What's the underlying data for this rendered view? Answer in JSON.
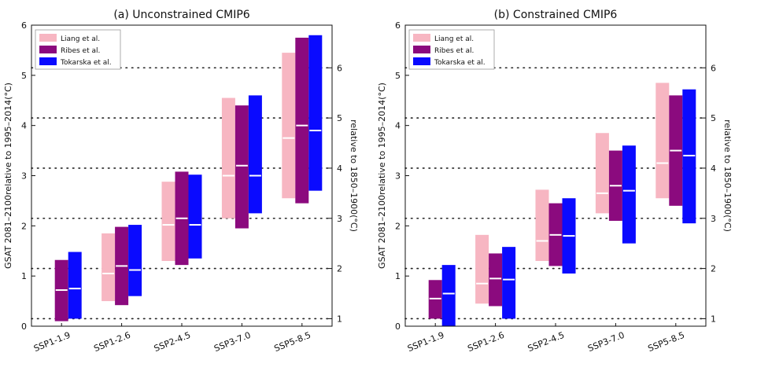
{
  "chart_data": [
    {
      "type": "bar",
      "title": "(a) Unconstrained CMIP6",
      "ylabel": "GSAT 2081–2100relative to 1995–2014(°C)",
      "ylabel2": "relative to 1850–1900(°C)",
      "ylim": [
        0,
        6
      ],
      "yticks": [
        "0",
        "1",
        "2",
        "3",
        "4",
        "5",
        "6"
      ],
      "y2ticks": [
        "1",
        "2",
        "3",
        "4",
        "5",
        "6"
      ],
      "y2_offset": 0.85,
      "grid": "dotted horizontal at right-axis ticks",
      "legend_position": "top-left",
      "categories": [
        "SSP1-1.9",
        "SSP1-2.6",
        "SSP2-4.5",
        "SSP3-7.0",
        "SSP5-8.5"
      ],
      "series": [
        {
          "name": "Liang et al.",
          "color": "#f7b6c2",
          "low": [
            null,
            0.5,
            1.3,
            2.15,
            2.55
          ],
          "high": [
            null,
            1.85,
            2.88,
            4.55,
            5.45
          ],
          "median": [
            null,
            1.05,
            2.02,
            3.0,
            3.75
          ]
        },
        {
          "name": "Ribes et al.",
          "color": "#8b0a7e",
          "low": [
            0.1,
            0.42,
            1.22,
            1.95,
            2.45
          ],
          "high": [
            1.32,
            1.98,
            3.08,
            4.4,
            5.75
          ],
          "median": [
            0.72,
            1.2,
            2.15,
            3.2,
            4.0
          ]
        },
        {
          "name": "Tokarska et al.",
          "color": "#0a0aff",
          "low": [
            0.15,
            0.6,
            1.35,
            2.25,
            2.7
          ],
          "high": [
            1.48,
            2.02,
            3.02,
            4.6,
            5.8
          ],
          "median": [
            0.75,
            1.12,
            2.02,
            3.0,
            3.9
          ]
        }
      ]
    },
    {
      "type": "bar",
      "title": "(b) Constrained CMIP6",
      "ylabel": "GSAT 2081–2100relative to 1995–2014(°C)",
      "ylabel2": "relative to 1850–1900(°C)",
      "ylim": [
        0,
        6
      ],
      "yticks": [
        "0",
        "1",
        "2",
        "3",
        "4",
        "5",
        "6"
      ],
      "y2ticks": [
        "1",
        "2",
        "3",
        "4",
        "5",
        "6"
      ],
      "y2_offset": 0.85,
      "grid": "dotted horizontal at right-axis ticks",
      "legend_position": "top-left",
      "categories": [
        "SSP1-1.9",
        "SSP1-2.6",
        "SSP2-4.5",
        "SSP3-7.0",
        "SSP5-8.5"
      ],
      "series": [
        {
          "name": "Liang et al.",
          "color": "#f7b6c2",
          "low": [
            null,
            0.45,
            1.3,
            2.25,
            2.55
          ],
          "high": [
            null,
            1.82,
            2.72,
            3.85,
            4.85
          ],
          "median": [
            null,
            0.85,
            1.7,
            2.65,
            3.25
          ]
        },
        {
          "name": "Ribes et al.",
          "color": "#8b0a7e",
          "low": [
            0.15,
            0.4,
            1.2,
            2.1,
            2.4
          ],
          "high": [
            0.92,
            1.45,
            2.45,
            3.5,
            4.6
          ],
          "median": [
            0.55,
            0.95,
            1.82,
            2.8,
            3.5
          ]
        },
        {
          "name": "Tokarska et al.",
          "color": "#0a0aff",
          "low": [
            0.0,
            0.15,
            1.05,
            1.65,
            2.05
          ],
          "high": [
            1.22,
            1.58,
            2.55,
            3.6,
            4.72
          ],
          "median": [
            0.65,
            0.93,
            1.8,
            2.7,
            3.4
          ]
        }
      ]
    }
  ]
}
